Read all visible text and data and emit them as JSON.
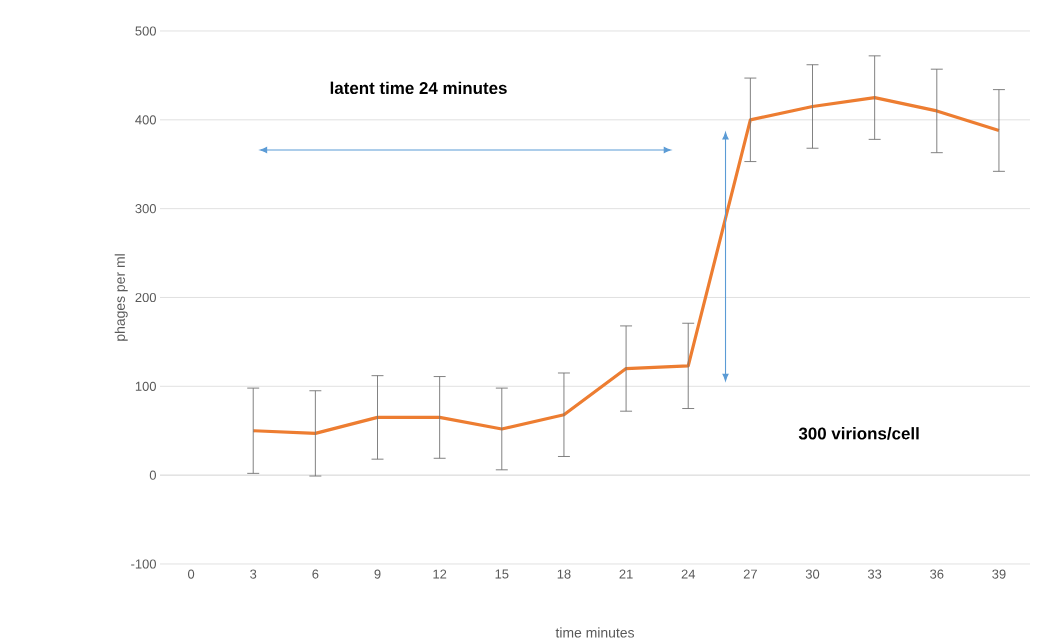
{
  "chart_data": {
    "type": "line",
    "xlabel": "time minutes",
    "ylabel": "phages per ml",
    "categories": [
      "0",
      "3",
      "6",
      "9",
      "12",
      "15",
      "18",
      "21",
      "24",
      "27",
      "30",
      "33",
      "36",
      "39"
    ],
    "series": [
      {
        "color": "#ed7d31",
        "values": [
          null,
          50,
          47,
          65,
          65,
          52,
          68,
          120,
          123,
          400,
          415,
          425,
          410,
          388
        ],
        "errors": [
          null,
          48,
          48,
          47,
          46,
          46,
          47,
          48,
          48,
          47,
          47,
          47,
          47,
          46
        ]
      }
    ],
    "ylim": [
      -100,
      500
    ],
    "yticks": [
      -100,
      0,
      100,
      200,
      300,
      400,
      500
    ],
    "grid": "y",
    "marker": "none",
    "line_style": "solid",
    "annotations": [
      "latent time 24 minutes",
      "300 virions/cell"
    ]
  }
}
